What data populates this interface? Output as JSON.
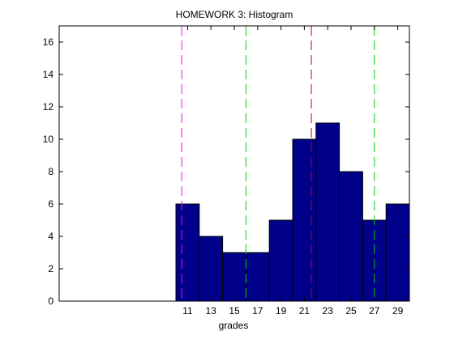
{
  "chart_data": {
    "type": "bar",
    "title": "HOMEWORK 3: Histogram",
    "xlabel": "grades",
    "ylabel": "",
    "xlim": [
      0,
      30
    ],
    "ylim": [
      0,
      17
    ],
    "grid": false,
    "bar_color": "#00008B",
    "bin_width": 2,
    "bins": [
      {
        "left": 10,
        "right": 12,
        "value": 6
      },
      {
        "left": 12,
        "right": 14,
        "value": 4
      },
      {
        "left": 14,
        "right": 16,
        "value": 3
      },
      {
        "left": 16,
        "right": 18,
        "value": 3
      },
      {
        "left": 18,
        "right": 20,
        "value": 5
      },
      {
        "left": 20,
        "right": 22,
        "value": 10
      },
      {
        "left": 22,
        "right": 24,
        "value": 11
      },
      {
        "left": 24,
        "right": 26,
        "value": 8
      },
      {
        "left": 26,
        "right": 28,
        "value": 5
      },
      {
        "left": 28,
        "right": 30,
        "value": 6
      }
    ],
    "x_ticks": [
      11,
      13,
      15,
      17,
      19,
      21,
      23,
      25,
      27,
      29
    ],
    "x_tick_labels": [
      "11",
      "13",
      "15",
      "17",
      "19",
      "21",
      "23",
      "25",
      "27",
      "29"
    ],
    "y_ticks": [
      0,
      2,
      4,
      6,
      8,
      10,
      12,
      14,
      16
    ],
    "y_tick_labels": [
      "0",
      "2",
      "4",
      "6",
      "8",
      "10",
      "12",
      "14",
      "16"
    ],
    "reference_lines": [
      {
        "x": 10.5,
        "color": "#FF00FF",
        "style": "dashed"
      },
      {
        "x": 16,
        "color": "#00CC00",
        "style": "dashed"
      },
      {
        "x": 21.6,
        "color": "#CC0000",
        "style": "dashed"
      },
      {
        "x": 27,
        "color": "#00CC00",
        "style": "dashed"
      }
    ]
  }
}
